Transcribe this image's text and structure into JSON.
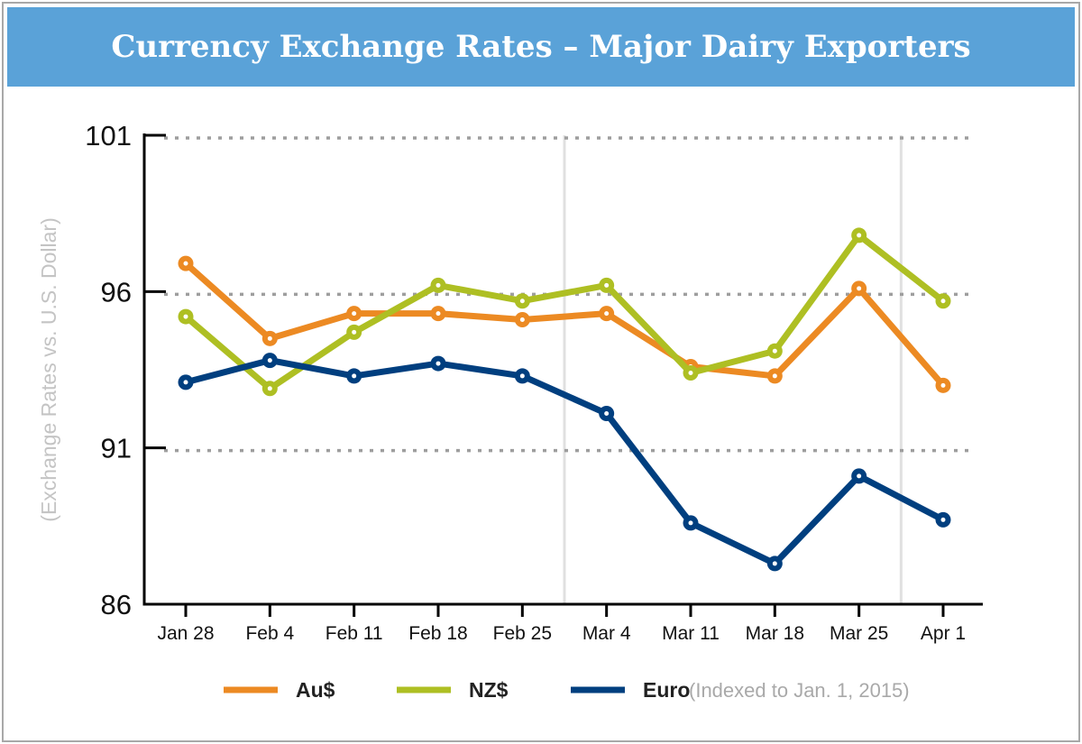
{
  "chart_data": {
    "type": "line",
    "title": "Currency Exchange Rates – Major Dairy Exporters",
    "ylabel": "(Exchange Rates vs. U.S. Dollar)",
    "xlabel": "",
    "note": "(Indexed to Jan. 1, 2015)",
    "categories": [
      "Jan 28",
      "Feb 4",
      "Feb 11",
      "Feb 18",
      "Feb 25",
      "Mar 4",
      "Mar 11",
      "Mar 18",
      "Mar 25",
      "Apr 1"
    ],
    "yticks": [
      86,
      91,
      96,
      101
    ],
    "ylim": [
      86,
      101
    ],
    "grid": "horizontal dotted",
    "legend": "bottom",
    "series": [
      {
        "name": "Au$",
        "color": "#ec8a23",
        "values": [
          96.9,
          94.5,
          95.3,
          95.3,
          95.1,
          95.3,
          93.6,
          93.3,
          96.1,
          93.0
        ]
      },
      {
        "name": "NZ$",
        "color": "#aebf23",
        "values": [
          95.2,
          92.9,
          94.7,
          96.2,
          95.7,
          96.2,
          93.4,
          94.1,
          97.8,
          95.7
        ]
      },
      {
        "name": "Euro",
        "color": "#003f7f",
        "values": [
          93.1,
          93.8,
          93.3,
          93.7,
          93.3,
          92.1,
          88.6,
          87.3,
          90.1,
          88.7
        ]
      }
    ]
  }
}
